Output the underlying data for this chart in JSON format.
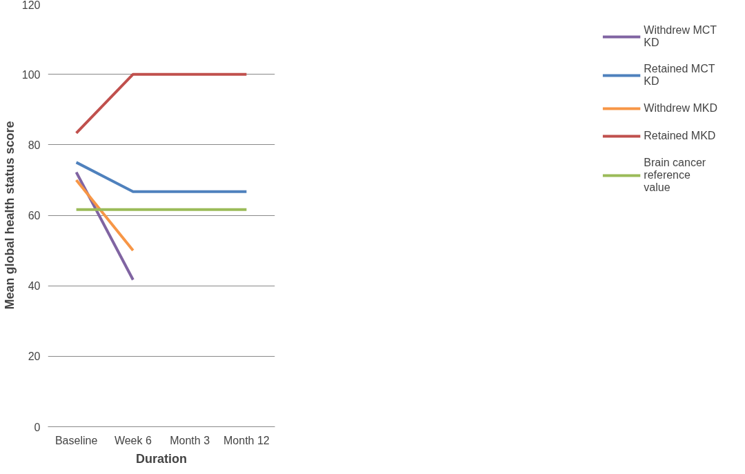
{
  "chart_data": {
    "type": "line",
    "xlabel": "Duration",
    "ylabel": "Mean global health status score",
    "categories": [
      "Baseline",
      "Week 6",
      "Month 3",
      "Month 12"
    ],
    "series": [
      {
        "name": "Withdrew MCT KD",
        "color": "#8064a2",
        "values": [
          72.2,
          41.7,
          null,
          null
        ]
      },
      {
        "name": "Retained MCT KD",
        "color": "#4f81bd",
        "values": [
          75,
          66.7,
          66.7,
          66.7
        ]
      },
      {
        "name": "Withdrew MKD",
        "color": "#f79646",
        "values": [
          70,
          50,
          null,
          null
        ]
      },
      {
        "name": "Retained MKD",
        "color": "#c0504d",
        "values": [
          83.3,
          100,
          100,
          100
        ]
      },
      {
        "name": "Brain cancer reference value",
        "color": "#9bbb59",
        "values": [
          61.6,
          61.6,
          61.6,
          61.6
        ]
      }
    ],
    "ylim": [
      0,
      120
    ],
    "yticks": [
      0,
      20,
      40,
      60,
      80,
      100,
      120
    ],
    "grid": "y",
    "legend": "right",
    "marker": "none",
    "line_style": "solid"
  }
}
